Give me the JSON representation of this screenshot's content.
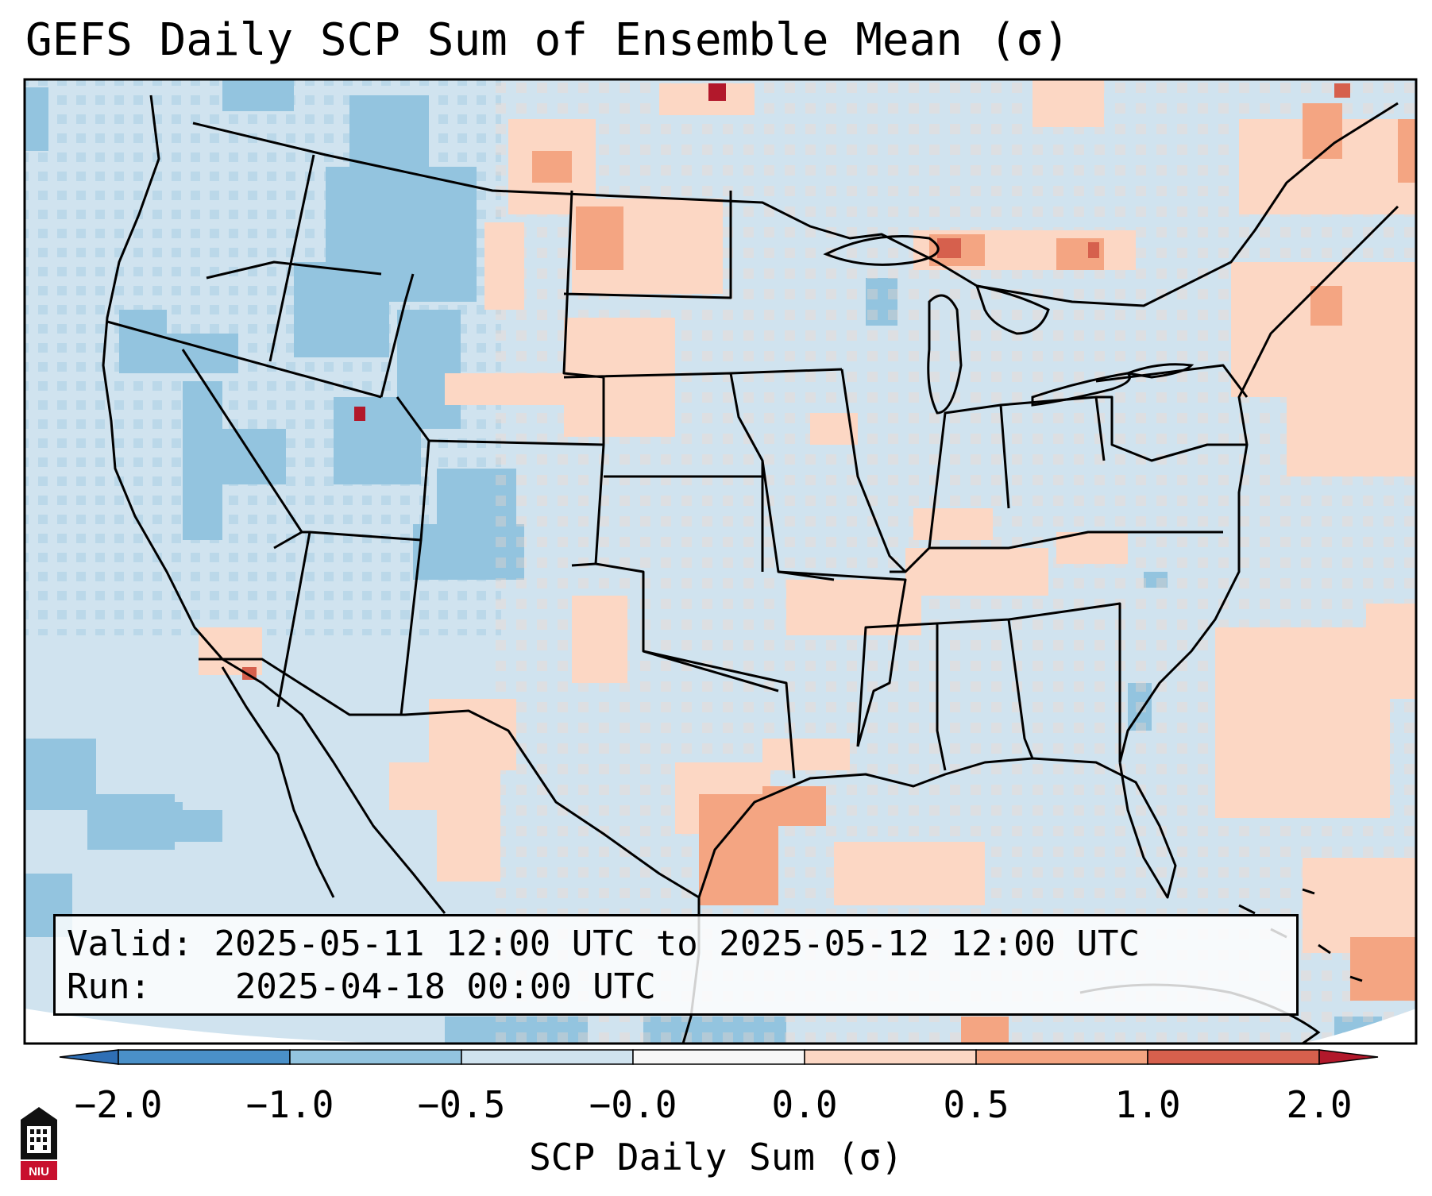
{
  "title": "GEFS Daily SCP Sum of Ensemble Mean (σ)",
  "info": {
    "valid_label": "Valid:",
    "valid_value": "2025-05-11 12:00 UTC to 2025-05-12 12:00 UTC",
    "run_label": "Run:",
    "run_value": "2025-04-18 00:00 UTC"
  },
  "colorbar": {
    "label": "SCP Daily Sum (σ)",
    "ticks": [
      "−2.0",
      "−1.0",
      "−0.5",
      "−0.0",
      "0.0",
      "0.5",
      "1.0",
      "2.0"
    ],
    "bins": [
      {
        "range": "< -2.0",
        "color": "#2f6fb5"
      },
      {
        "range": "-2.0 to -1.0",
        "color": "#4a90c8"
      },
      {
        "range": "-1.0 to -0.5",
        "color": "#93c4df"
      },
      {
        "range": "-0.5 to -0.0",
        "color": "#d0e3ef"
      },
      {
        "range": "-0.0 to 0.0",
        "color": "#f7f7f7"
      },
      {
        "range": "0.0 to 0.5",
        "color": "#fcd7c4"
      },
      {
        "range": "0.5 to 1.0",
        "color": "#f4a582"
      },
      {
        "range": "1.0 to 2.0",
        "color": "#d6604d"
      },
      {
        "range": "> 2.0",
        "color": "#b2182b"
      }
    ]
  },
  "map": {
    "region": "Contiguous United States",
    "background_color": "#d0e3ef",
    "features": [
      "state borders",
      "coastlines",
      "Great Lakes",
      "Mexico",
      "Cuba",
      "Bahamas"
    ]
  },
  "logo": {
    "text": "NIU"
  }
}
